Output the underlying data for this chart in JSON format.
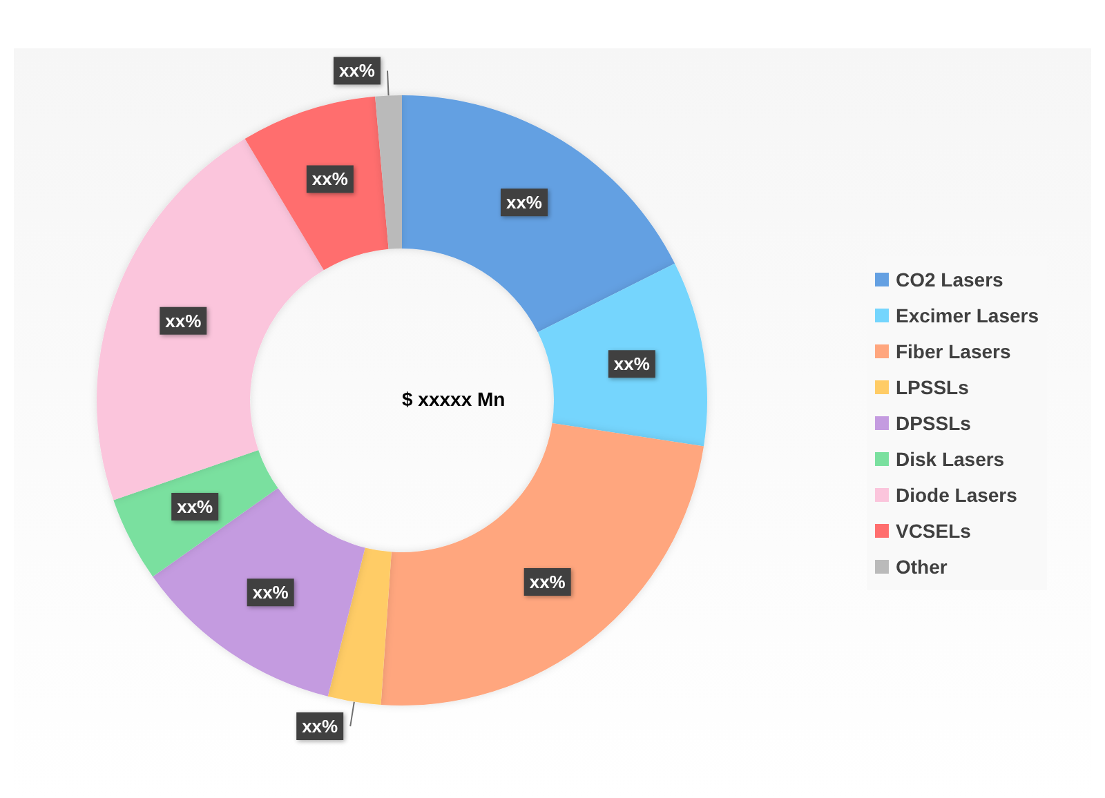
{
  "chart_data": {
    "type": "donut",
    "categories": [
      "CO2 Lasers",
      "Excimer Lasers",
      "Fiber Lasers",
      "LPSSLs",
      "DPSSLs",
      "Disk Lasers",
      "Diode Lasers",
      "VCSELs",
      "Other"
    ],
    "values": [
      17.6,
      9.8,
      23.7,
      2.8,
      11.3,
      4.5,
      21.7,
      7.2,
      1.4
    ],
    "colors": [
      "#64a0e2",
      "#74d5fd",
      "#ffa67e",
      "#ffcc66",
      "#c49be0",
      "#7ae09f",
      "#fbc5dc",
      "#ff6e6e",
      "#bababa"
    ],
    "value_labels": [
      "xx%",
      "xx%",
      "xx%",
      "xx%",
      "xx%",
      "xx%",
      "xx%",
      "xx%",
      "xx%"
    ],
    "annotations": [
      "$ xxxxx Mn"
    ],
    "legend": "right"
  }
}
